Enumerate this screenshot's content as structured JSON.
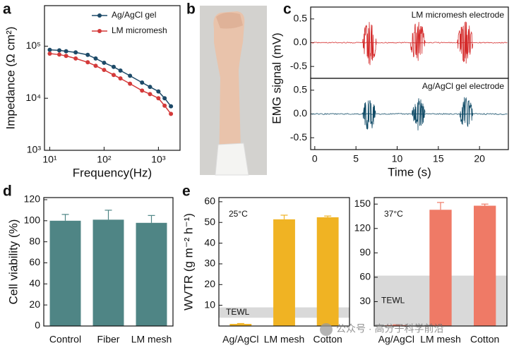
{
  "panel_labels": [
    "a",
    "b",
    "c",
    "d",
    "e"
  ],
  "watermark": "公众号 · 高分子科学前沿",
  "chart_data": [
    {
      "type": "line",
      "xlabel": "Frequency(Hz)",
      "ylabel": "Impedance (Ω cm²)",
      "xscale": "log",
      "yscale": "log",
      "xlim": [
        8,
        2500
      ],
      "ylim": [
        1000,
        600000
      ],
      "xticks": [
        {
          "value": 10,
          "label": "10¹"
        },
        {
          "value": 100,
          "label": "10²"
        },
        {
          "value": 1000,
          "label": "10³"
        }
      ],
      "yticks": [
        {
          "value": 1000,
          "label": "10³"
        },
        {
          "value": 10000,
          "label": "10⁴"
        },
        {
          "value": 100000,
          "label": "10⁵"
        }
      ],
      "legend": "upper right",
      "x": [
        10,
        15,
        20,
        30,
        50,
        70,
        100,
        150,
        200,
        300,
        500,
        700,
        1000,
        1300,
        1700
      ],
      "series": [
        {
          "name": "Ag/AgCl gel",
          "color": "#1d4a68",
          "values": [
            85000,
            83000,
            80000,
            76000,
            68000,
            58000,
            48000,
            40000,
            34000,
            27000,
            20000,
            16500,
            13500,
            10000,
            7000
          ]
        },
        {
          "name": "LM micromesh",
          "color": "#d43a3a",
          "values": [
            72000,
            69000,
            65000,
            58000,
            49000,
            42000,
            35000,
            28000,
            24000,
            19000,
            14000,
            12000,
            10000,
            7200,
            5000
          ]
        }
      ]
    },
    {
      "type": "signal",
      "annotation": "LM micromesh electrode",
      "ylabel": "EMG signal (mV)",
      "color": "#d42a2a",
      "xlim": [
        -0.5,
        23.5
      ],
      "ylim": [
        -0.75,
        0.75
      ],
      "yticks": [
        -0.5,
        {
          "value": 0,
          "label": "0.0"
        },
        0.5
      ],
      "bursts": [
        {
          "start": 5.8,
          "end": 7.5,
          "amplitude": 0.5
        },
        {
          "start": 11.6,
          "end": 13.4,
          "amplitude": 0.48
        },
        {
          "start": 17.3,
          "end": 19.2,
          "amplitude": 0.48
        }
      ]
    },
    {
      "type": "signal",
      "annotation": "Ag/AgCl gel electrode",
      "xlabel": "Time (s)",
      "color": "#0f4a66",
      "xlim": [
        -0.5,
        23.5
      ],
      "ylim": [
        -0.75,
        0.75
      ],
      "yticks": [
        -0.5,
        {
          "value": 0,
          "label": "0.0"
        },
        0.5
      ],
      "xticks": [
        0,
        5,
        10,
        15,
        20
      ],
      "bursts": [
        {
          "start": 5.8,
          "end": 7.4,
          "amplitude": 0.38
        },
        {
          "start": 11.8,
          "end": 13.4,
          "amplitude": 0.36
        },
        {
          "start": 17.6,
          "end": 19.2,
          "amplitude": 0.38
        }
      ]
    },
    {
      "type": "bar",
      "ylabel": "Cell viability (%)",
      "categories": [
        "Control",
        "Fiber",
        "LM mesh"
      ],
      "values": [
        100,
        101,
        98
      ],
      "errors": [
        6,
        9,
        7
      ],
      "color": "#4f8585",
      "ylim": [
        0,
        122
      ],
      "yticks": [
        0,
        20,
        40,
        60,
        80,
        100,
        120
      ]
    },
    {
      "type": "bar",
      "ylabel": "WVTR (g m⁻² h⁻¹)",
      "annotation": "25°C",
      "categories": [
        "Ag/AgCl",
        "LM mesh",
        "Cotton"
      ],
      "values": [
        1,
        51.5,
        52.5
      ],
      "errors": [
        0.2,
        2,
        0.6
      ],
      "color": "#f0b323",
      "ylim": [
        0,
        62
      ],
      "yticks": [
        10,
        20,
        30,
        40,
        50,
        60
      ],
      "band": {
        "range": [
          4,
          9
        ],
        "label": "TEWL"
      }
    },
    {
      "type": "bar",
      "annotation": "37°C",
      "categories": [
        "Ag/AgCl",
        "LM mesh",
        "Cotton"
      ],
      "values": [
        1,
        143,
        148
      ],
      "errors": [
        0.5,
        9,
        2
      ],
      "color": "#ef7a66",
      "ylim": [
        0,
        158
      ],
      "yticks": [
        30,
        60,
        90,
        120,
        150
      ],
      "band": {
        "range": [
          0,
          62
        ],
        "label": "TEWL"
      }
    }
  ]
}
